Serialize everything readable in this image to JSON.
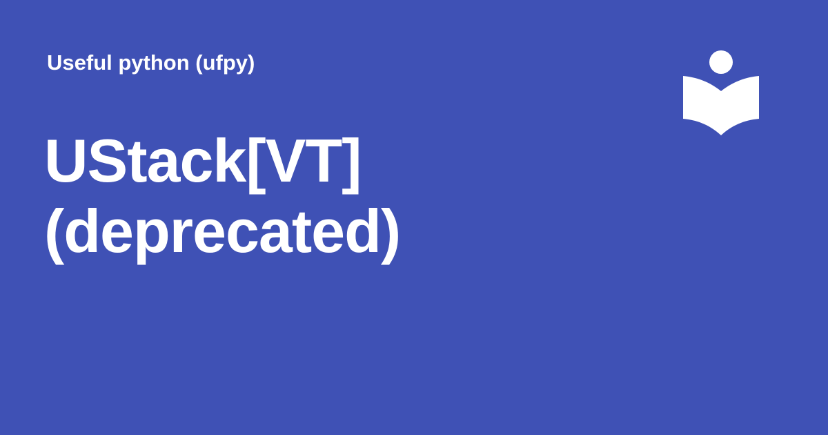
{
  "header": {
    "site_name": "Useful python (ufpy)"
  },
  "main": {
    "title": "UStack[VT] (deprecated)"
  },
  "brand": {
    "background_color": "#3f51b5",
    "foreground_color": "#ffffff",
    "logo_icon": "reading-person-book-icon"
  }
}
